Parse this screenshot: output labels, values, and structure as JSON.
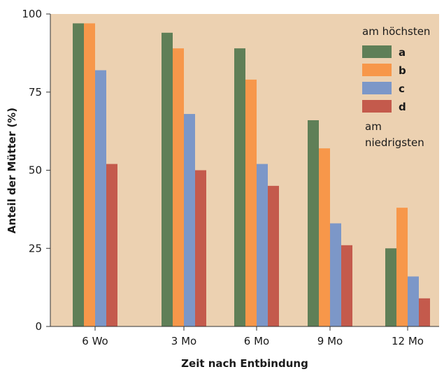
{
  "chart_data": {
    "type": "bar",
    "title": "",
    "xlabel": "Zeit nach Entbindung",
    "ylabel": "Anteil der Mütter (%)",
    "categories": [
      "6 Wo",
      "3 Mo",
      "6 Mo",
      "9 Mo",
      "12 Mo"
    ],
    "y_ticks": [
      "0",
      "25",
      "50",
      "75",
      "100"
    ],
    "series": [
      {
        "name": "a",
        "color": "#5f7f57",
        "values": [
          97,
          94,
          89,
          66,
          25
        ]
      },
      {
        "name": "b",
        "color": "#f7974a",
        "values": [
          97,
          89,
          79,
          57,
          38
        ]
      },
      {
        "name": "c",
        "color": "#7c97c8",
        "values": [
          82,
          68,
          52,
          33,
          16
        ]
      },
      {
        "name": "d",
        "color": "#c45a4c",
        "values": [
          52,
          50,
          45,
          26,
          9
        ]
      }
    ],
    "ylim": [
      0,
      100
    ],
    "legend": {
      "position": "top-right",
      "top_label": "am höchsten",
      "bottom_label_1": "am",
      "bottom_label_2": "niedrigsten"
    },
    "plot_background": "#ecd1b1",
    "grid": false
  }
}
